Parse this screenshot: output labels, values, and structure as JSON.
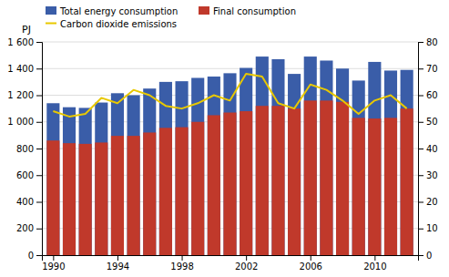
{
  "chart_data": {
    "type": "bar",
    "ylabel": "PJ",
    "x": [
      1990,
      1991,
      1992,
      1993,
      1994,
      1995,
      1996,
      1997,
      1998,
      1999,
      2000,
      2001,
      2002,
      2003,
      2004,
      2005,
      2006,
      2007,
      2008,
      2009,
      2010,
      2011,
      2012
    ],
    "series": [
      {
        "name": "Total energy consumption",
        "type": "bar",
        "color": "#3a5da8",
        "values": [
          1140,
          1110,
          1105,
          1145,
          1215,
          1200,
          1250,
          1300,
          1305,
          1330,
          1340,
          1365,
          1405,
          1490,
          1470,
          1360,
          1490,
          1460,
          1400,
          1310,
          1450,
          1385,
          1390
        ]
      },
      {
        "name": "Final consumption",
        "type": "bar",
        "color": "#c0392b",
        "values": [
          860,
          840,
          835,
          845,
          895,
          895,
          920,
          955,
          960,
          1000,
          1050,
          1070,
          1080,
          1120,
          1120,
          1100,
          1160,
          1160,
          1150,
          1030,
          1025,
          1030,
          1100
        ]
      },
      {
        "name": "Carbon dioxide emissions",
        "type": "line",
        "axis": "y2",
        "color": "#e8c800",
        "values": [
          54,
          52,
          53,
          59,
          57,
          62,
          60,
          56,
          55,
          57,
          60,
          58,
          68,
          67,
          57,
          55,
          64,
          62,
          58,
          53,
          58,
          60,
          55
        ]
      }
    ],
    "stacked": false,
    "xlim": [
      1989.3,
      2012.7
    ],
    "xticks": [
      1990,
      1994,
      1998,
      2002,
      2006,
      2010
    ],
    "ylim": [
      0,
      1600
    ],
    "yticks": [
      0,
      200,
      400,
      600,
      800,
      {
        "value": 1000,
        "label": "1 000"
      },
      {
        "value": 1200,
        "label": "1 200"
      },
      {
        "value": 1400,
        "label": "1 400"
      },
      {
        "value": 1600,
        "label": "1 600"
      }
    ],
    "y2lim": [
      0,
      80
    ],
    "y2ticks": [
      0,
      10,
      20,
      30,
      40,
      50,
      60,
      70,
      80
    ],
    "grid": true,
    "legend": "top-left"
  }
}
